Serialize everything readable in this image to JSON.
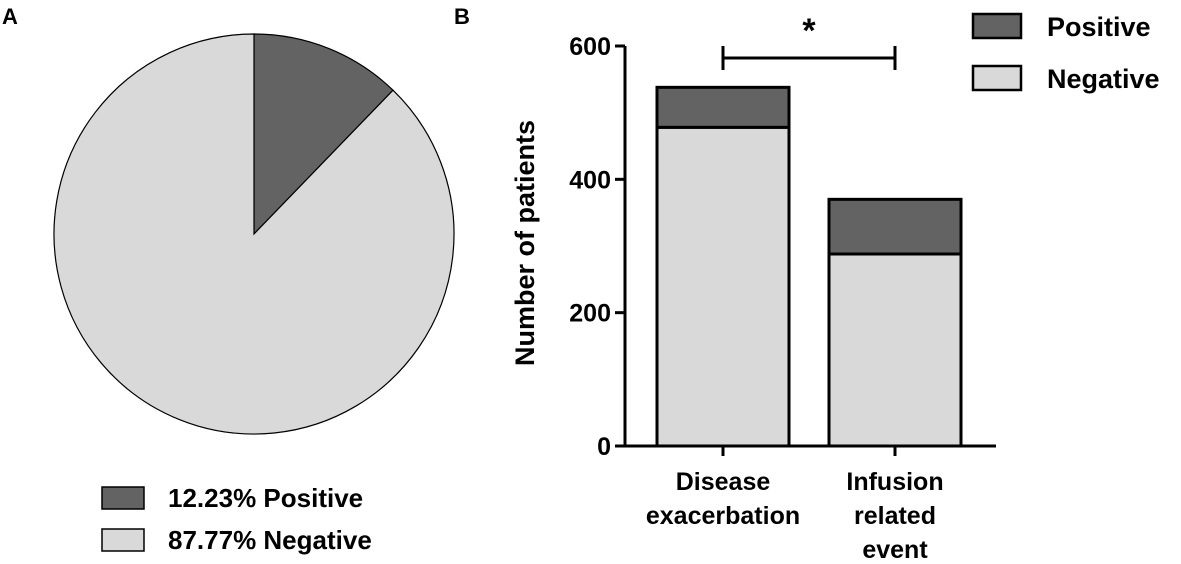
{
  "panels": {
    "a": {
      "label": "A"
    },
    "b": {
      "label": "B"
    }
  },
  "colors": {
    "positive": "#636363",
    "negative": "#d9d9d9",
    "stroke": "#000000"
  },
  "chart_data": [
    {
      "type": "pie",
      "panel": "A",
      "title": "",
      "slices": [
        {
          "name": "Positive",
          "value": 12.23,
          "legend": "12.23% Positive"
        },
        {
          "name": "Negative",
          "value": 87.77,
          "legend": "87.77% Negative"
        }
      ],
      "legend_position": "bottom"
    },
    {
      "type": "bar",
      "stacked": true,
      "panel": "B",
      "title": "",
      "categories": [
        [
          "Disease",
          "exacerbation"
        ],
        [
          "Infusion",
          "related",
          "event"
        ]
      ],
      "series": [
        {
          "name": "Negative",
          "values": [
            478,
            288
          ]
        },
        {
          "name": "Positive",
          "values": [
            60,
            82
          ]
        }
      ],
      "xlabel": "",
      "ylabel": "Number of patients",
      "ylim": [
        0,
        600
      ],
      "yticks": [
        0,
        200,
        400,
        600
      ],
      "legend": [
        "Positive",
        "Negative"
      ],
      "legend_position": "top-right",
      "annotations": [
        {
          "text": "*",
          "between": [
            0,
            1
          ],
          "type": "significance"
        }
      ]
    }
  ]
}
